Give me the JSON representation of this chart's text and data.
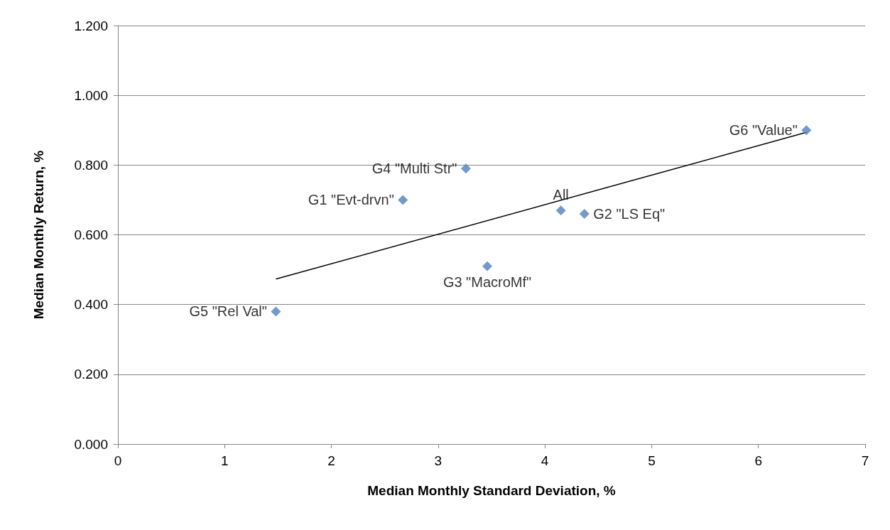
{
  "chart_data": {
    "type": "scatter",
    "xlabel": "Median Monthly Standard Deviation, %",
    "ylabel": "Median Monthly Return, %",
    "x": [
      1.48,
      2.67,
      3.26,
      3.46,
      4.15,
      4.37,
      6.45
    ],
    "series": [
      {
        "color": "#4f81bd",
        "values": [
          0.38,
          0.7,
          0.79,
          0.51,
          0.67,
          0.66,
          0.9
        ]
      },
      {
        "type": "line",
        "color": "#000000",
        "x": [
          1.48,
          6.45
        ],
        "values": [
          0.473,
          0.894
        ],
        "marker": "none"
      }
    ],
    "marker": "diamond",
    "annotations": [
      {
        "text": "G5 \"Rel Val\"",
        "x": 1.48,
        "y": 0.38
      },
      {
        "text": "G1 \"Evt-drvn\"",
        "x": 2.67,
        "y": 0.7
      },
      {
        "text": "G4 \"Multi Str\"",
        "x": 3.26,
        "y": 0.79
      },
      {
        "text": "G3 \"MacroMf\"",
        "x": 3.46,
        "y": 0.51
      },
      {
        "text": "All",
        "x": 4.15,
        "y": 0.67
      },
      {
        "text": "G2 \"LS Eq\"",
        "x": 4.37,
        "y": 0.66
      },
      {
        "text": "G6 \"Value\"",
        "x": 6.45,
        "y": 0.9
      }
    ],
    "xlim": [
      0,
      7
    ],
    "xticks": [
      0,
      1,
      2,
      3,
      4,
      5,
      6,
      7
    ],
    "ylim": [
      0,
      1.2
    ],
    "yticks": [
      {
        "value": 0,
        "label": "0.000"
      },
      {
        "value": 0.2,
        "label": "0.200"
      },
      {
        "value": 0.4,
        "label": "0.400"
      },
      {
        "value": 0.6,
        "label": "0.600"
      },
      {
        "value": 0.8,
        "label": "0.800"
      },
      {
        "value": 1.0,
        "label": "1.000"
      },
      {
        "value": 1.2,
        "label": "1.200"
      }
    ],
    "grid": "y"
  }
}
